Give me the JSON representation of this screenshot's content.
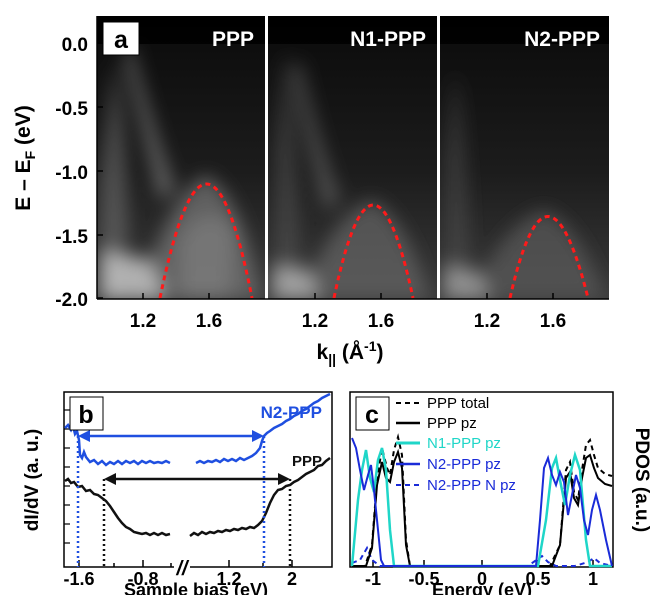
{
  "figure": {
    "panel_a": {
      "label": "a",
      "ylabel_main": "E – E",
      "ylabel_sub": "F",
      "ylabel_unit": " (eV)",
      "xlabel_main": "k",
      "xlabel_sub": "||",
      "xlabel_unit": " (Å",
      "xlabel_sup": "-1",
      "xlabel_close": ")",
      "yticks": [
        "0.0",
        "-0.5",
        "-1.0",
        "-1.5",
        "-2.0"
      ],
      "xticks": [
        "1.2",
        "1.6"
      ],
      "subpanels": [
        "PPP",
        "N1-PPP",
        "N2-PPP"
      ]
    },
    "panel_b": {
      "label": "b",
      "ylabel": "dI/dV (a. u.)",
      "xlabel": "Sample bias (eV)",
      "xticks": [
        "-1.6",
        "-0.8",
        "1.2",
        "2"
      ],
      "break_mark": "//",
      "series_labels": [
        "N2-PPP",
        "PPP"
      ]
    },
    "panel_c": {
      "label": "c",
      "ylabel": "PDOS (a.u.)",
      "xlabel": "Energy (eV)",
      "xticks": [
        "-1",
        "-0.5",
        "0",
        "0.5",
        "1"
      ],
      "legend": [
        "PPP total",
        "PPP pz",
        "N1-PPP pz",
        "N2-PPP pz",
        "N2-PPP N pz"
      ]
    }
  },
  "chart_data": [
    {
      "type": "heatmap",
      "panel": "a",
      "title": "",
      "ylabel": "E – EF (eV)",
      "xlabel": "k|| (Å-1)",
      "ylim": [
        -2.0,
        0.1
      ],
      "xlim": [
        0.95,
        1.8
      ],
      "subpanels": [
        "PPP",
        "N1-PPP",
        "N2-PPP"
      ],
      "band_fit_maxima": [
        {
          "name": "PPP",
          "k": 1.5,
          "E": -1.03
        },
        {
          "name": "N1-PPP",
          "k": 1.5,
          "E": -1.25
        },
        {
          "name": "N2-PPP",
          "k": 1.52,
          "E": -1.37
        }
      ],
      "colors": {
        "fit": "#ff1a1a",
        "colormap": "grayscale"
      }
    },
    {
      "type": "line",
      "panel": "b",
      "ylabel": "dI/dV (a. u.)",
      "xlabel": "Sample bias (eV)",
      "x_ticks": [
        -1.6,
        -0.8,
        1.2,
        2
      ],
      "series": [
        {
          "name": "N2-PPP",
          "color": "#1f4fe0",
          "gap_edges_eV": [
            -1.6,
            1.6
          ]
        },
        {
          "name": "PPP",
          "color": "#111111",
          "gap_edges_eV": [
            -1.35,
            1.95
          ]
        }
      ]
    },
    {
      "type": "line",
      "panel": "c",
      "ylabel": "PDOS (a.u.)",
      "xlabel": "Energy (eV)",
      "xlim": [
        -1.3,
        1.3
      ],
      "legend_position": "top",
      "series": [
        {
          "name": "PPP total",
          "color": "#000000",
          "style": "dashed",
          "peaks_eV": [
            -1.05,
            -0.86,
            1.06,
            1.2
          ]
        },
        {
          "name": "PPP pz",
          "color": "#000000",
          "style": "solid",
          "peaks_eV": [
            -1.06,
            -0.87,
            1.05,
            1.2
          ]
        },
        {
          "name": "N1-PPP pz",
          "color": "#1fd6c8",
          "style": "solid",
          "peaks_eV": [
            -1.22,
            -1.06,
            0.93,
            1.14
          ]
        },
        {
          "name": "N2-PPP pz",
          "color": "#1a2bd8",
          "style": "solid",
          "peaks_eV": [
            -1.27,
            -1.15,
            0.88,
            1.03,
            1.18
          ]
        },
        {
          "name": "N2-PPP N pz",
          "color": "#1a2bd8",
          "style": "dashed",
          "peaks_eV": [
            -1.2,
            0.95
          ]
        }
      ]
    }
  ]
}
